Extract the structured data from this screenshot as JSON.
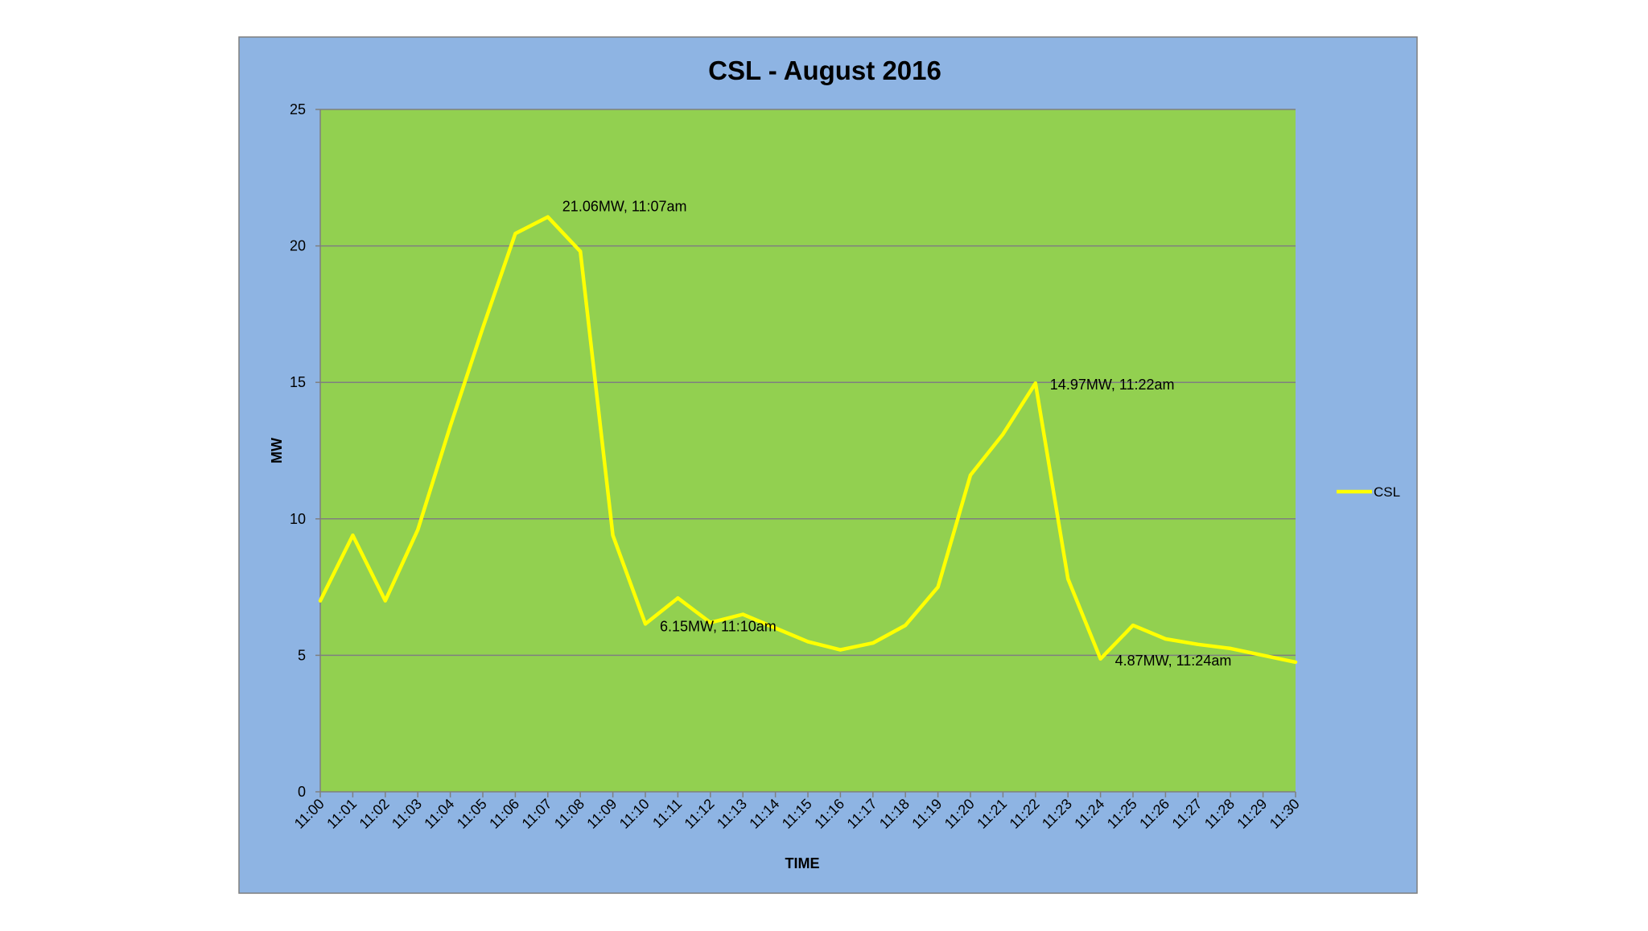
{
  "colors": {
    "chart_area_bg": "#8eb4e3",
    "plot_area_bg": "#92d050",
    "series_line": "#ffff00",
    "gridline": "#7f7f7f",
    "border": "#7f7f7f"
  },
  "chart_data": {
    "type": "line",
    "title": "CSL - August 2016",
    "xlabel": "TIME",
    "ylabel": "MW",
    "ylim": [
      0,
      25
    ],
    "yticks": [
      0,
      5,
      10,
      15,
      20,
      25
    ],
    "grid": true,
    "legend_position": "right",
    "categories": [
      "11:00",
      "11:01",
      "11:02",
      "11:03",
      "11:04",
      "11:05",
      "11:06",
      "11:07",
      "11:08",
      "11:09",
      "11:10",
      "11:11",
      "11:12",
      "11:13",
      "11:14",
      "11:15",
      "11:16",
      "11:17",
      "11:18",
      "11:19",
      "11:20",
      "11:21",
      "11:22",
      "11:23",
      "11:24",
      "11:25",
      "11:26",
      "11:27",
      "11:28",
      "11:29",
      "11:30"
    ],
    "series": [
      {
        "name": "CSL",
        "color": "#ffff00",
        "values": [
          7.0,
          9.4,
          7.0,
          9.6,
          13.4,
          17.0,
          20.45,
          21.06,
          19.8,
          9.4,
          6.15,
          7.1,
          6.2,
          6.5,
          6.0,
          5.5,
          5.2,
          5.45,
          6.1,
          7.5,
          11.6,
          13.1,
          14.97,
          7.8,
          4.87,
          6.1,
          5.6,
          5.4,
          5.25,
          5.0,
          4.75
        ]
      }
    ],
    "annotations": [
      {
        "text": "21.06MW, 11:07am",
        "x": "11:07",
        "y": 21.06
      },
      {
        "text": "6.15MW, 11:10am",
        "x": "11:10",
        "y": 6.15
      },
      {
        "text": "14.97MW, 11:22am",
        "x": "11:22",
        "y": 14.97
      },
      {
        "text": "4.87MW, 11:24am",
        "x": "11:24",
        "y": 4.87
      }
    ]
  }
}
